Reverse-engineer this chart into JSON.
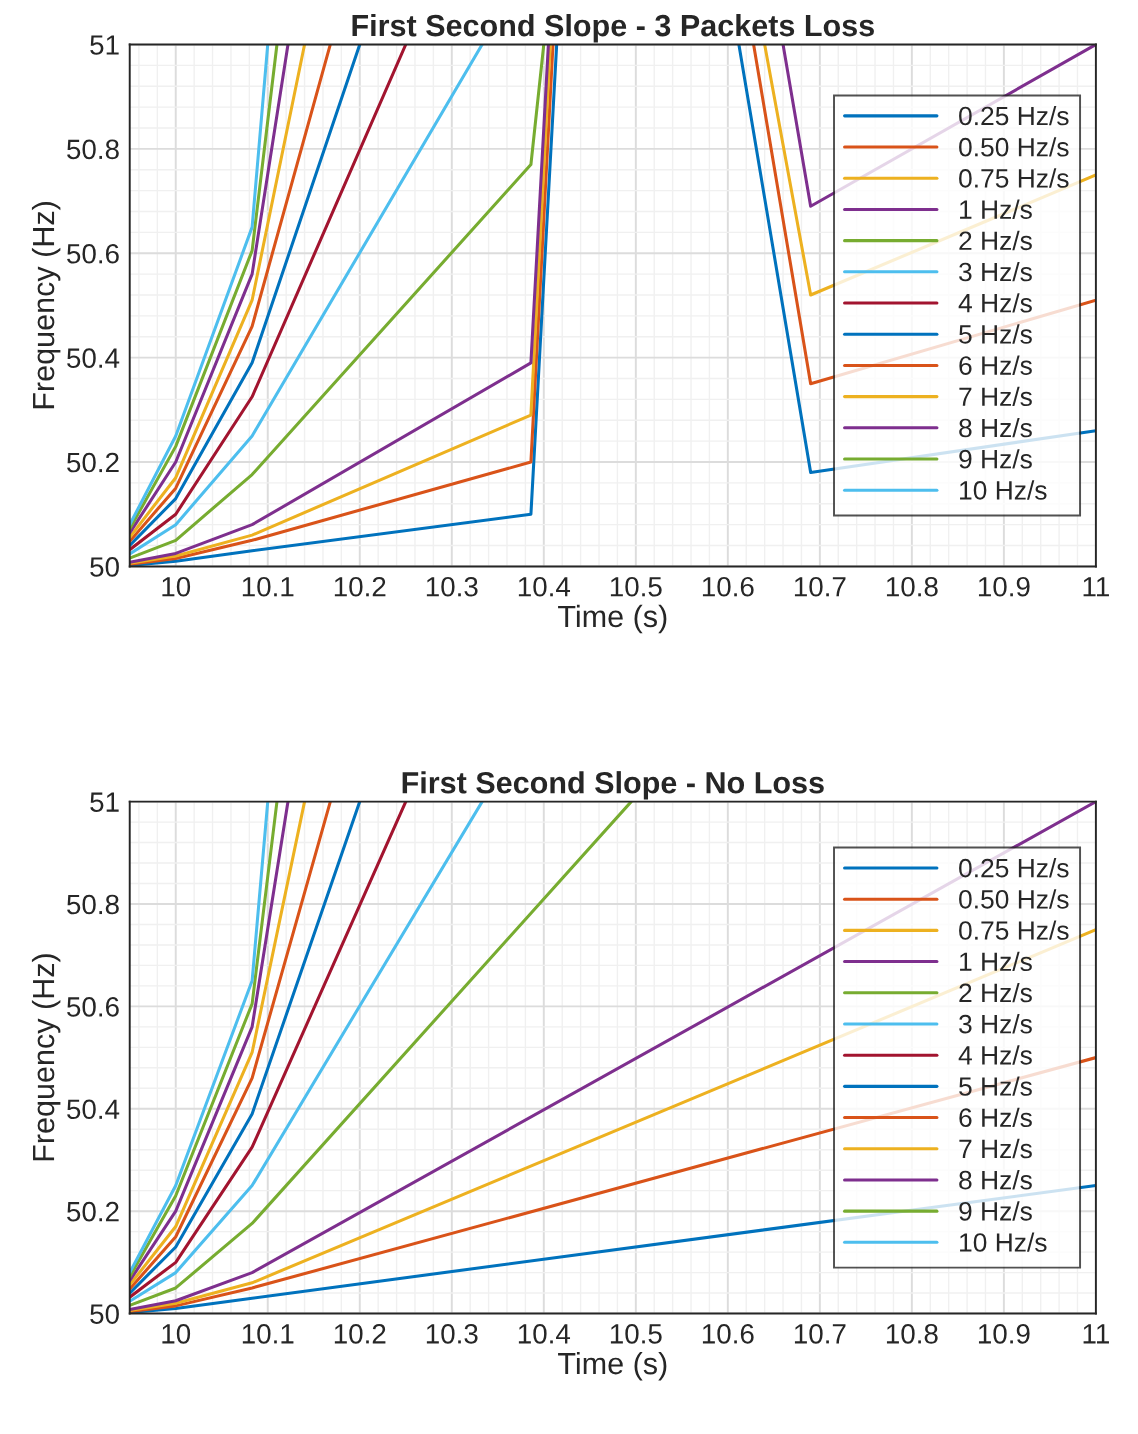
{
  "chart_data": [
    {
      "type": "line",
      "title": "First Second Slope - 3 Packets Loss",
      "xlabel": "Time (s)",
      "ylabel": "Frequency (Hz)",
      "xlim": [
        9.95,
        11
      ],
      "xticks": [
        10,
        10.1,
        10.2,
        10.3,
        10.4,
        10.5,
        10.6,
        10.7,
        10.8,
        10.9,
        11
      ],
      "ylim": [
        50,
        51
      ],
      "yticks": [
        50,
        50.2,
        50.4,
        50.6,
        50.8,
        51
      ],
      "grid": true,
      "legend": "right",
      "line_style": "solid",
      "marker": "none",
      "series": [
        {
          "name": "0.25 Hz/s",
          "color": "#0072bd",
          "x": [
            9.95,
            10,
            10.083,
            10.386,
            10.414,
            10.5,
            10.612,
            10.69,
            11
          ],
          "values": [
            50.002,
            50.01,
            50.03,
            50.1,
            51,
            null,
            51,
            50.18,
            50.26
          ]
        },
        {
          "name": "0.50 Hz/s",
          "color": "#d95319",
          "x": [
            9.95,
            10,
            10.083,
            10.386,
            10.41,
            10.5,
            10.628,
            10.69,
            11
          ],
          "values": [
            50.004,
            50.015,
            50.05,
            50.2,
            51,
            null,
            51,
            50.35,
            50.51
          ]
        },
        {
          "name": "0.75 Hz/s",
          "color": "#edb120",
          "x": [
            9.95,
            10,
            10.083,
            10.386,
            10.407,
            10.5,
            10.64,
            10.69,
            11
          ],
          "values": [
            50.006,
            50.02,
            50.06,
            50.29,
            51,
            null,
            51,
            50.52,
            50.75
          ]
        },
        {
          "name": "1 Hz/s",
          "color": "#7e2f8e",
          "x": [
            9.95,
            10,
            10.083,
            10.386,
            10.405,
            10.5,
            10.66,
            10.69,
            11
          ],
          "values": [
            50.008,
            50.025,
            50.08,
            50.39,
            51,
            null,
            51,
            50.69,
            51
          ]
        },
        {
          "name": "2 Hz/s",
          "color": "#77ac30",
          "x": [
            9.95,
            10,
            10.083,
            10.386,
            10.4
          ],
          "values": [
            50.016,
            50.05,
            50.176,
            50.77,
            51
          ]
        },
        {
          "name": "3 Hz/s",
          "color": "#4dbeee",
          "x": [
            9.95,
            10,
            10.083,
            10.333
          ],
          "values": [
            50.024,
            50.08,
            50.25,
            51
          ]
        },
        {
          "name": "4 Hz/s",
          "color": "#a2142f",
          "x": [
            9.95,
            10,
            10.083,
            10.25
          ],
          "values": [
            50.032,
            50.1,
            50.325,
            51
          ]
        },
        {
          "name": "5 Hz/s",
          "color": "#0072bd",
          "x": [
            9.95,
            10,
            10.083,
            10.2
          ],
          "values": [
            50.04,
            50.13,
            50.39,
            51
          ]
        },
        {
          "name": "6 Hz/s",
          "color": "#d95319",
          "x": [
            9.95,
            10,
            10.083,
            10.168
          ],
          "values": [
            50.048,
            50.15,
            50.46,
            51
          ]
        },
        {
          "name": "7 Hz/s",
          "color": "#edb120",
          "x": [
            9.95,
            10,
            10.083,
            10.14
          ],
          "values": [
            50.056,
            50.17,
            50.51,
            51
          ]
        },
        {
          "name": "8 Hz/s",
          "color": "#7e2f8e",
          "x": [
            9.95,
            10,
            10.083,
            10.122
          ],
          "values": [
            50.064,
            50.2,
            50.56,
            51
          ]
        },
        {
          "name": "9 Hz/s",
          "color": "#77ac30",
          "x": [
            9.95,
            10,
            10.083,
            10.11
          ],
          "values": [
            50.072,
            50.23,
            50.605,
            51
          ]
        },
        {
          "name": "10 Hz/s",
          "color": "#4dbeee",
          "x": [
            9.95,
            10,
            10.083,
            10.1
          ],
          "values": [
            50.08,
            50.25,
            50.65,
            51
          ]
        }
      ]
    },
    {
      "type": "line",
      "title": "First Second Slope - No Loss",
      "xlabel": "Time (s)",
      "ylabel": "Frequency (Hz)",
      "xlim": [
        9.95,
        11
      ],
      "xticks": [
        10,
        10.1,
        10.2,
        10.3,
        10.4,
        10.5,
        10.6,
        10.7,
        10.8,
        10.9,
        11
      ],
      "ylim": [
        50,
        51
      ],
      "yticks": [
        50,
        50.2,
        50.4,
        50.6,
        50.8,
        51
      ],
      "grid": true,
      "legend": "right",
      "line_style": "solid",
      "marker": "none",
      "series": [
        {
          "name": "0.25 Hz/s",
          "color": "#0072bd",
          "x": [
            9.95,
            10,
            10.083,
            11
          ],
          "values": [
            50.002,
            50.01,
            50.03,
            50.25
          ]
        },
        {
          "name": "0.50 Hz/s",
          "color": "#d95319",
          "x": [
            9.95,
            10,
            10.083,
            11
          ],
          "values": [
            50.004,
            50.015,
            50.05,
            50.5
          ]
        },
        {
          "name": "0.75 Hz/s",
          "color": "#edb120",
          "x": [
            9.95,
            10,
            10.083,
            11
          ],
          "values": [
            50.006,
            50.02,
            50.06,
            50.75
          ]
        },
        {
          "name": "1 Hz/s",
          "color": "#7e2f8e",
          "x": [
            9.95,
            10,
            10.083,
            11
          ],
          "values": [
            50.008,
            50.025,
            50.08,
            51
          ]
        },
        {
          "name": "2 Hz/s",
          "color": "#77ac30",
          "x": [
            9.95,
            10,
            10.083,
            10.495
          ],
          "values": [
            50.016,
            50.05,
            50.176,
            51
          ]
        },
        {
          "name": "3 Hz/s",
          "color": "#4dbeee",
          "x": [
            9.95,
            10,
            10.083,
            10.333
          ],
          "values": [
            50.024,
            50.08,
            50.25,
            51
          ]
        },
        {
          "name": "4 Hz/s",
          "color": "#a2142f",
          "x": [
            9.95,
            10,
            10.083,
            10.25
          ],
          "values": [
            50.032,
            50.1,
            50.325,
            51
          ]
        },
        {
          "name": "5 Hz/s",
          "color": "#0072bd",
          "x": [
            9.95,
            10,
            10.083,
            10.2
          ],
          "values": [
            50.04,
            50.13,
            50.39,
            51
          ]
        },
        {
          "name": "6 Hz/s",
          "color": "#d95319",
          "x": [
            9.95,
            10,
            10.083,
            10.168
          ],
          "values": [
            50.048,
            50.15,
            50.46,
            51
          ]
        },
        {
          "name": "7 Hz/s",
          "color": "#edb120",
          "x": [
            9.95,
            10,
            10.083,
            10.14
          ],
          "values": [
            50.056,
            50.17,
            50.51,
            51
          ]
        },
        {
          "name": "8 Hz/s",
          "color": "#7e2f8e",
          "x": [
            9.95,
            10,
            10.083,
            10.122
          ],
          "values": [
            50.064,
            50.2,
            50.56,
            51
          ]
        },
        {
          "name": "9 Hz/s",
          "color": "#77ac30",
          "x": [
            9.95,
            10,
            10.083,
            10.11
          ],
          "values": [
            50.072,
            50.23,
            50.605,
            51
          ]
        },
        {
          "name": "10 Hz/s",
          "color": "#4dbeee",
          "x": [
            9.95,
            10,
            10.083,
            10.1
          ],
          "values": [
            50.08,
            50.25,
            50.65,
            51
          ]
        }
      ]
    }
  ]
}
